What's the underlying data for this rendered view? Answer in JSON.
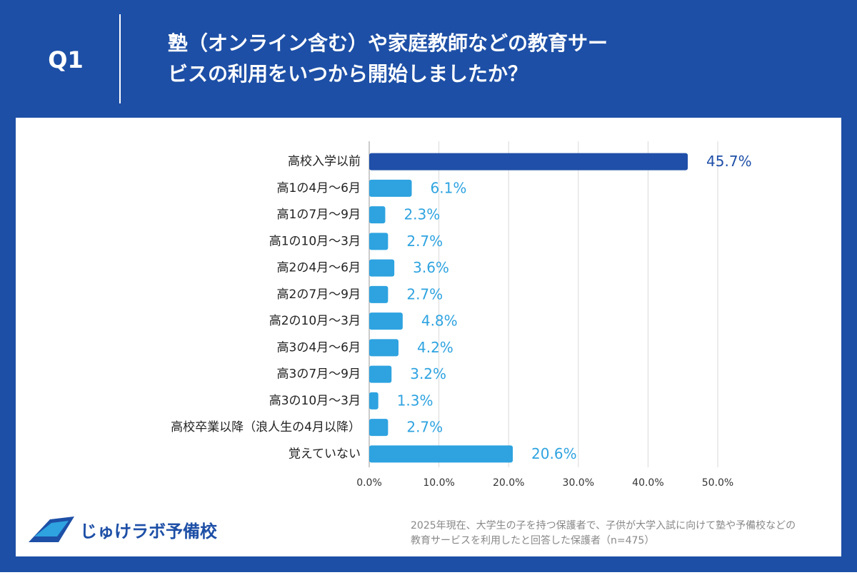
{
  "header": {
    "tag": "Q1"
  },
  "chart_data": {
    "type": "bar",
    "orientation": "horizontal",
    "title": [
      "塾（オンライン含む）や家庭教師などの教育サー",
      "ビスの利用をいつから開始しましたか？"
    ],
    "categories": [
      "高校入学以前",
      "高1の4月〜6月",
      "高1の7月〜9月",
      "高1の10月〜3月",
      "高2の4月〜6月",
      "高2の7月〜9月",
      "高2の10月〜3月",
      "高3の4月〜6月",
      "高3の7月〜9月",
      "高3の10月〜3月",
      "高校卒業以降（浪人生の4月以降）",
      "覚えていない"
    ],
    "values": [
      45.7,
      6.1,
      2.3,
      2.7,
      3.6,
      2.7,
      4.8,
      4.2,
      3.2,
      1.3,
      2.7,
      20.6
    ],
    "value_labels": [
      "45.7%",
      "6.1%",
      "2.3%",
      "2.7%",
      "3.6%",
      "2.7%",
      "4.8%",
      "4.2%",
      "3.2%",
      "1.3%",
      "2.7%",
      "20.6%"
    ],
    "colors": [
      "#1f4fa8",
      "#2ea3e0",
      "#2ea3e0",
      "#2ea3e0",
      "#2ea3e0",
      "#2ea3e0",
      "#2ea3e0",
      "#2ea3e0",
      "#2ea3e0",
      "#2ea3e0",
      "#2ea3e0",
      "#2ea3e0"
    ],
    "xlim": [
      0,
      50
    ],
    "xticks": [
      {
        "value": 0,
        "label": "0.0%"
      },
      {
        "value": 10,
        "label": "10.0%"
      },
      {
        "value": 20,
        "label": "20.0%"
      },
      {
        "value": 30,
        "label": "30.0%"
      },
      {
        "value": 40,
        "label": "40.0%"
      },
      {
        "value": 50,
        "label": "50.0%"
      }
    ],
    "grid": true,
    "note": [
      "2025年現在、大学生の子を持つ保護者で、子供が大学入試に向けて塾や予備校などの",
      "教育サービスを利用したと回答した保護者（n=475）"
    ]
  },
  "logo": {
    "text": "じゅけラボ予備校"
  }
}
